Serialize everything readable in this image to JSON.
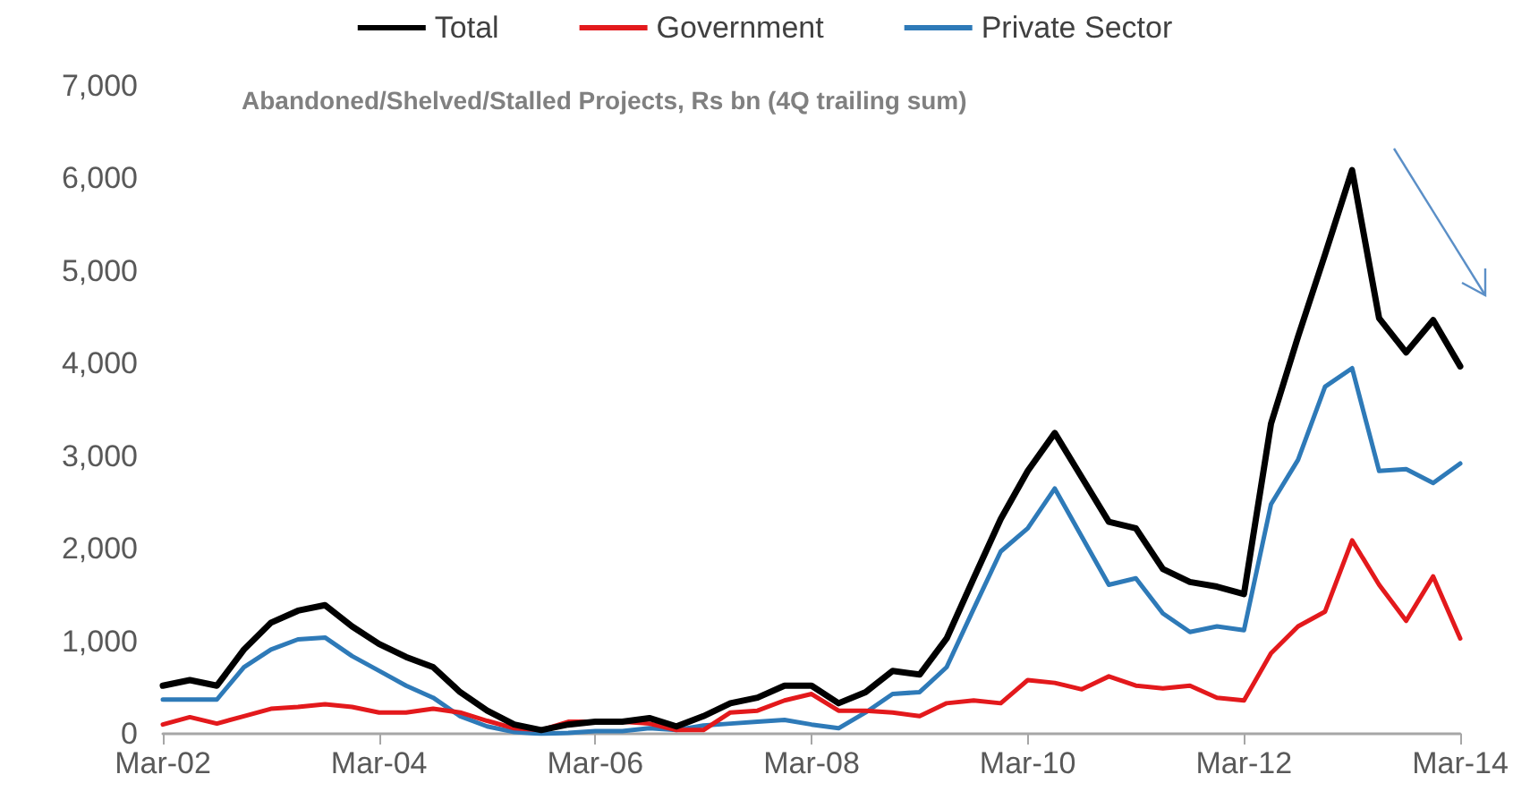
{
  "chart_data": {
    "type": "line",
    "title": "Abandoned/Shelved/Stalled Projects, Rs bn (4Q trailing sum)",
    "categories": [
      "Mar-02",
      null,
      null,
      null,
      null,
      null,
      null,
      null,
      "Mar-04",
      null,
      null,
      null,
      null,
      null,
      null,
      null,
      "Mar-06",
      null,
      null,
      null,
      null,
      null,
      null,
      null,
      "Mar-08",
      null,
      null,
      null,
      null,
      null,
      null,
      null,
      "Mar-10",
      null,
      null,
      null,
      null,
      null,
      null,
      null,
      "Mar-12",
      null,
      null,
      null,
      null,
      null,
      null,
      null,
      "Mar-14"
    ],
    "series": [
      {
        "name": "Total",
        "color": "#000000",
        "values": [
          520,
          580,
          520,
          910,
          1200,
          1330,
          1390,
          1160,
          970,
          830,
          720,
          450,
          250,
          100,
          40,
          100,
          130,
          130,
          170,
          80,
          190,
          330,
          390,
          520,
          520,
          330,
          450,
          680,
          640,
          1030,
          1680,
          2320,
          2840,
          3250,
          2770,
          2290,
          2220,
          1780,
          1640,
          1590,
          1510,
          3350,
          4290,
          5180,
          6090,
          4490,
          4120,
          4470,
          3970
        ]
      },
      {
        "name": "Government",
        "color": "#e3191c",
        "values": [
          100,
          180,
          110,
          190,
          270,
          290,
          320,
          290,
          230,
          230,
          270,
          230,
          140,
          60,
          40,
          130,
          130,
          130,
          110,
          40,
          40,
          230,
          250,
          360,
          430,
          250,
          250,
          230,
          190,
          330,
          360,
          330,
          580,
          550,
          480,
          620,
          520,
          490,
          520,
          390,
          360,
          870,
          1160,
          1320,
          2090,
          1610,
          1220,
          1700,
          1030
        ]
      },
      {
        "name": "Private Sector",
        "color": "#2e7ab8",
        "values": [
          370,
          370,
          370,
          720,
          910,
          1020,
          1040,
          840,
          680,
          520,
          390,
          190,
          80,
          20,
          0,
          10,
          30,
          30,
          60,
          40,
          90,
          110,
          130,
          150,
          100,
          60,
          230,
          430,
          450,
          720,
          1350,
          1970,
          2220,
          2650,
          2130,
          1610,
          1680,
          1300,
          1100,
          1160,
          1120,
          2480,
          2960,
          3750,
          3950,
          2840,
          2860,
          2710,
          2920
        ]
      }
    ],
    "ylim": [
      0,
      7000
    ],
    "yticks": [
      0,
      {
        "value": 1000,
        "label": "1,000"
      },
      {
        "value": 2000,
        "label": "2,000"
      },
      {
        "value": 3000,
        "label": "3,000"
      },
      {
        "value": 4000,
        "label": "4,000"
      },
      {
        "value": 5000,
        "label": "5,000"
      },
      {
        "value": 6000,
        "label": "6,000"
      },
      {
        "value": 7000,
        "label": "7,000"
      }
    ],
    "grid": false,
    "legend": "top",
    "marker": "none",
    "line_style": "solid"
  }
}
